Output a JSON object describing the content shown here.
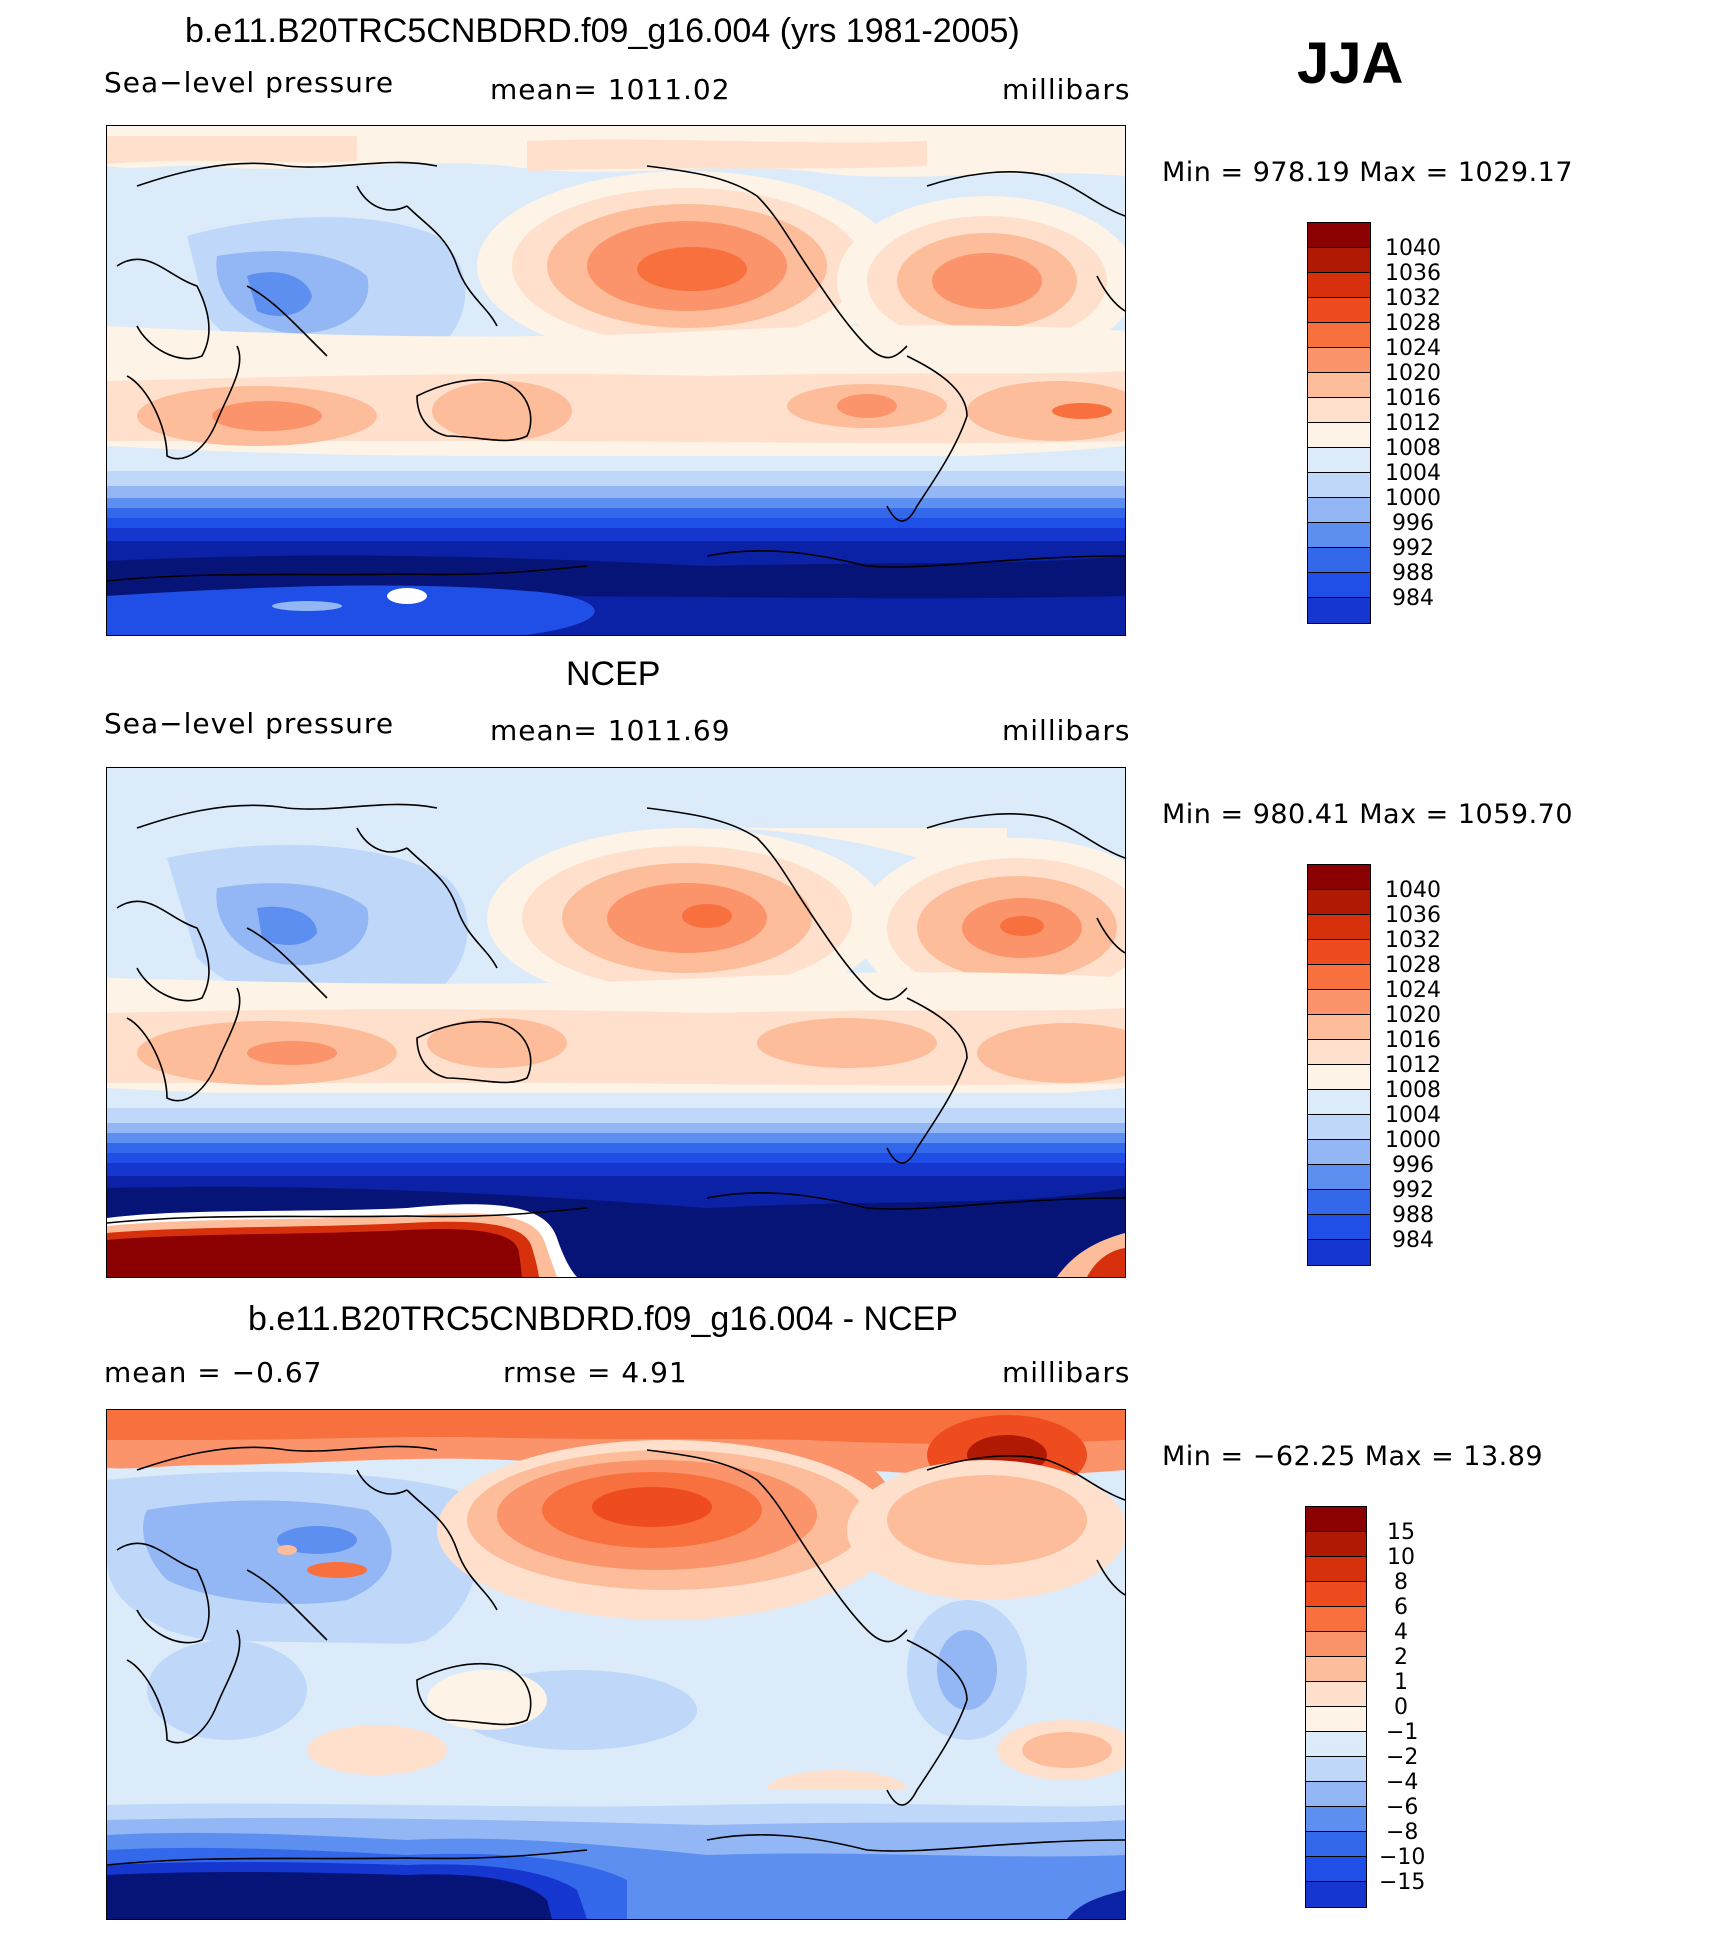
{
  "season": "JJA",
  "panels": [
    {
      "id": "model",
      "title": "b.e11.B20TRC5CNBDRD.f09_g16.004 (yrs 1981-2005)",
      "left_label": "Sea−level pressure",
      "center_label": "mean=  1011.02",
      "right_label": "millibars",
      "minmax": "Min  =  978.19  Max  =  1029.17",
      "colorbar_labels": [
        "1040",
        "1036",
        "1032",
        "1028",
        "1024",
        "1020",
        "1016",
        "1012",
        "1008",
        "1004",
        "1000",
        "996",
        "992",
        "988",
        "984"
      ],
      "colorbar_colors": [
        "#8b0000",
        "#b01a05",
        "#d7300c",
        "#ee4b1f",
        "#f9703f",
        "#fc946b",
        "#fdbd9a",
        "#fee0cc",
        "#fdf3e6",
        "#dcebfa",
        "#bfd7f8",
        "#93b7f4",
        "#5d8ff0",
        "#3468ea",
        "#1f4fe6",
        "#1536cf",
        "#0c22a6",
        "#061478"
      ]
    },
    {
      "id": "obs",
      "title": "NCEP",
      "left_label": "Sea−level pressure",
      "center_label": "mean=  1011.69",
      "right_label": "millibars",
      "minmax": "Min  =  980.41  Max  =  1059.70",
      "colorbar_labels": [
        "1040",
        "1036",
        "1032",
        "1028",
        "1024",
        "1020",
        "1016",
        "1012",
        "1008",
        "1004",
        "1000",
        "996",
        "992",
        "988",
        "984"
      ],
      "colorbar_colors": [
        "#8b0000",
        "#b01a05",
        "#d7300c",
        "#ee4b1f",
        "#f9703f",
        "#fc946b",
        "#fdbd9a",
        "#fee0cc",
        "#fdf3e6",
        "#dcebfa",
        "#bfd7f8",
        "#93b7f4",
        "#5d8ff0",
        "#3468ea",
        "#1f4fe6",
        "#1536cf",
        "#0c22a6",
        "#061478"
      ]
    },
    {
      "id": "diff",
      "title": "b.e11.B20TRC5CNBDRD.f09_g16.004 - NCEP",
      "left_label": "mean  =    −0.67",
      "center_label": "rmse  =      4.91",
      "right_label": "millibars",
      "minmax": "Min  =  −62.25  Max  =    13.89",
      "colorbar_labels": [
        "15",
        "10",
        "8",
        "6",
        "4",
        "2",
        "1",
        "0",
        "−1",
        "−2",
        "−4",
        "−6",
        "−8",
        "−10",
        "−15"
      ],
      "colorbar_colors": [
        "#8b0000",
        "#b01a05",
        "#d7300c",
        "#ee4b1f",
        "#f9703f",
        "#fc946b",
        "#fdbd9a",
        "#fee0cc",
        "#fdf3e6",
        "#dcebfa",
        "#bfd7f8",
        "#93b7f4",
        "#5d8ff0",
        "#3468ea",
        "#1f4fe6",
        "#1536cf",
        "#0c22a6",
        "#061478"
      ]
    }
  ]
}
